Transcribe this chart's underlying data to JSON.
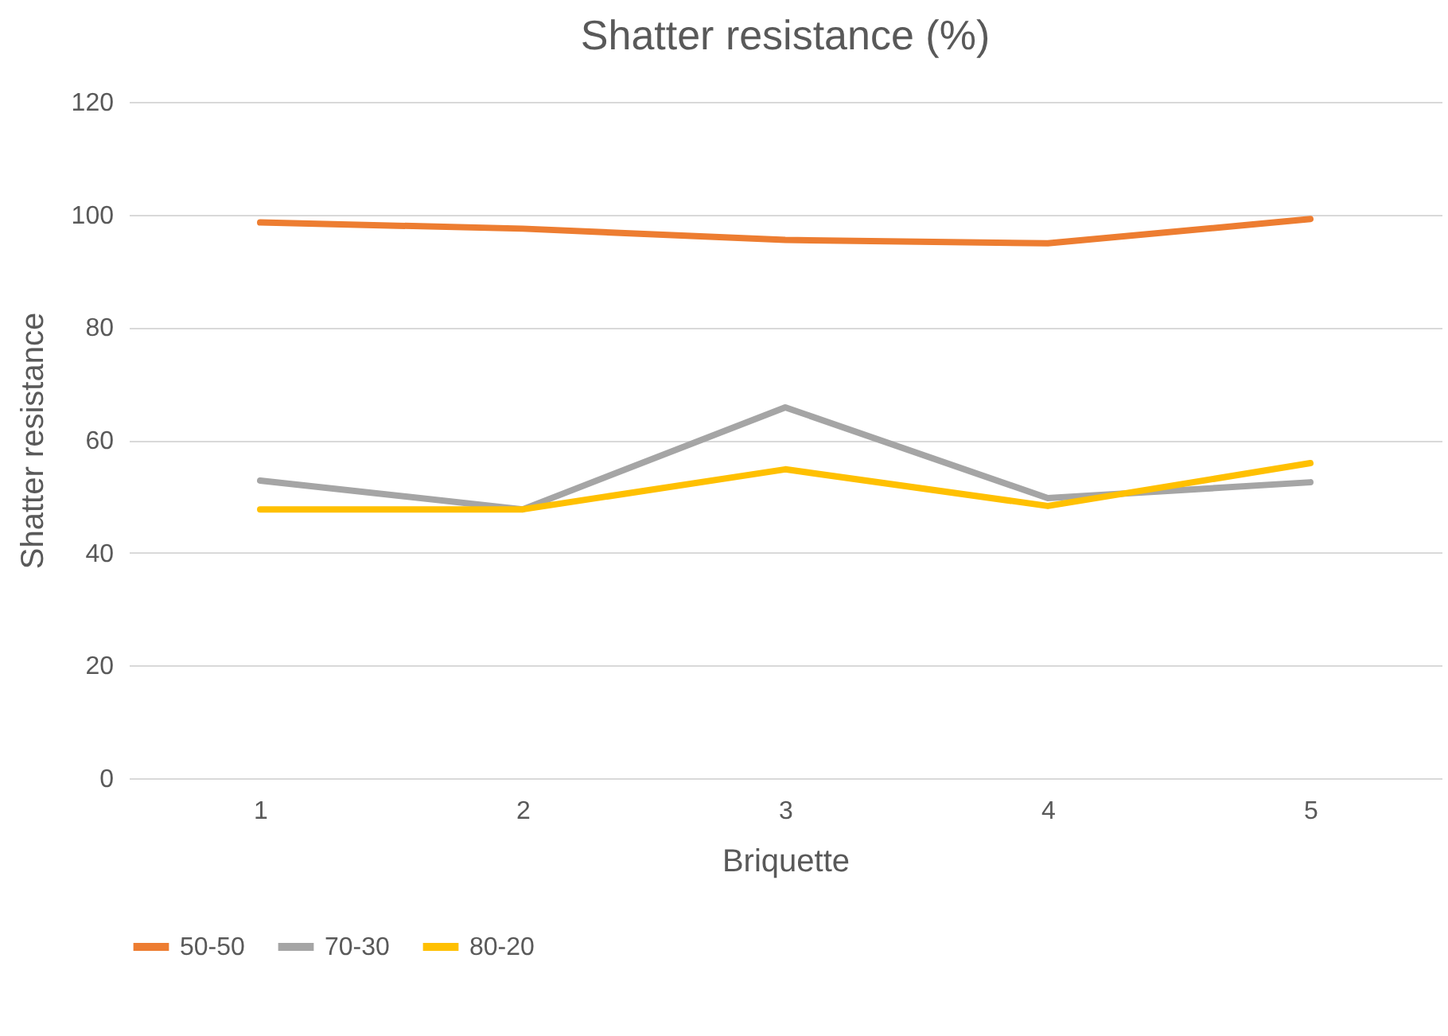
{
  "chart_data": {
    "type": "line",
    "title": "Shatter resistance (%)",
    "xlabel": "Briquette",
    "ylabel": "Shatter resistance",
    "categories": [
      "1",
      "2",
      "3",
      "4",
      "5"
    ],
    "series": [
      {
        "name": "50-50",
        "color": "#ed7d31",
        "values": [
          98.6,
          97.5,
          95.5,
          94.9,
          99.2
        ]
      },
      {
        "name": "70-30",
        "color": "#a5a5a5",
        "values": [
          52.8,
          47.7,
          65.8,
          49.7,
          52.5
        ]
      },
      {
        "name": "80-20",
        "color": "#ffc000",
        "values": [
          47.7,
          47.7,
          54.8,
          48.3,
          55.9
        ]
      }
    ],
    "ylim": [
      0,
      120
    ],
    "yticks": [
      0,
      20,
      40,
      60,
      80,
      100,
      120
    ],
    "grid": "y",
    "legend": "bottom",
    "marker": "none",
    "line_style": "solid"
  }
}
